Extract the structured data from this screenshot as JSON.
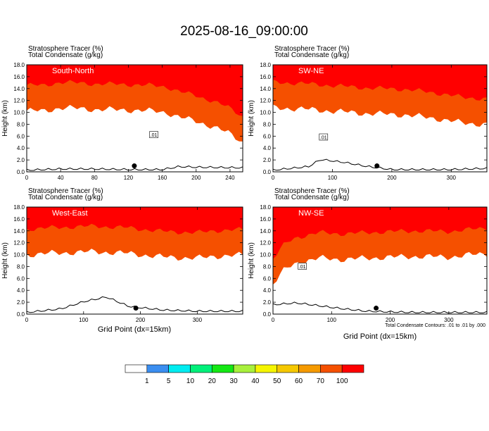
{
  "figure": {
    "title": "2025-08-16_09:00:00",
    "xlabel": "Grid Point (dx=15km)",
    "contour_note": "Total Condensate Contours: .01 to .01 by .000"
  },
  "colors": {
    "fill_0_1": "#ffffff",
    "fill_1_5": "#3b8ef0",
    "fill_5_10": "#00ecf0",
    "fill_10_20": "#00f07a",
    "fill_20_30": "#14e814",
    "fill_30_40": "#a8f03c",
    "fill_40_50": "#f5f500",
    "fill_50_60": "#f5c800",
    "fill_60_70": "#f59a00",
    "fill_70_100": "#f55000",
    "fill_100": "#ff0000",
    "contour": "#000000"
  },
  "colorbar": {
    "labels": [
      "1",
      "5",
      "10",
      "20",
      "30",
      "40",
      "50",
      "60",
      "70",
      "100"
    ],
    "colors": [
      "#ffffff",
      "#3b8ef0",
      "#00ecf0",
      "#00f07a",
      "#14e814",
      "#a8f03c",
      "#f5f500",
      "#f5c800",
      "#f59a00",
      "#f55000",
      "#ff0000"
    ]
  },
  "chart_data": [
    {
      "type": "heatmap",
      "title": "South-North",
      "field_label": "Stratosphere Tracer",
      "field_units": "(%)",
      "contour_label": "Total Condensate",
      "contour_units": "(g/kg)",
      "ylabel": "Height (km)",
      "xlim": [
        0,
        255
      ],
      "ylim": [
        0,
        18
      ],
      "xticks": [
        0,
        40,
        80,
        120,
        160,
        200,
        240
      ],
      "yticks": [
        0.0,
        2.0,
        4.0,
        6.0,
        8.0,
        10.0,
        12.0,
        14.0,
        16.0,
        18.0
      ],
      "tropopause_km": [
        [
          0,
          14.3
        ],
        [
          20,
          14.2
        ],
        [
          40,
          14.8
        ],
        [
          80,
          14.5
        ],
        [
          120,
          14.4
        ],
        [
          150,
          14.2
        ],
        [
          165,
          14.0
        ],
        [
          180,
          13.2
        ],
        [
          200,
          12.5
        ],
        [
          220,
          11.6
        ],
        [
          240,
          10.4
        ],
        [
          255,
          9.0
        ]
      ],
      "terrain_km": [
        [
          0,
          0.2
        ],
        [
          40,
          0.4
        ],
        [
          80,
          0.4
        ],
        [
          120,
          0.3
        ],
        [
          160,
          0.3
        ],
        [
          180,
          0.8
        ],
        [
          200,
          0.7
        ],
        [
          255,
          0.6
        ]
      ],
      "marker": [
        127,
        1.0
      ],
      "contour_label_value": ".01",
      "contour_label_at": [
        150,
        6.2
      ]
    },
    {
      "type": "heatmap",
      "title": "SW-NE",
      "field_label": "Stratosphere Tracer",
      "field_units": "(%)",
      "contour_label": "Total Condensate",
      "contour_units": "(g/kg)",
      "ylabel": "Height (km)",
      "xlim": [
        0,
        360
      ],
      "ylim": [
        0,
        18
      ],
      "xticks": [
        0,
        100,
        200,
        300
      ],
      "yticks": [
        0.0,
        2.0,
        4.0,
        6.0,
        8.0,
        10.0,
        12.0,
        14.0,
        16.0,
        18.0
      ],
      "tropopause_km": [
        [
          0,
          14.8
        ],
        [
          60,
          14.5
        ],
        [
          100,
          14.2
        ],
        [
          160,
          13.8
        ],
        [
          220,
          13.6
        ],
        [
          280,
          12.9
        ],
        [
          320,
          12.2
        ],
        [
          360,
          12.0
        ]
      ],
      "terrain_km": [
        [
          0,
          0.2
        ],
        [
          60,
          0.8
        ],
        [
          80,
          2.0
        ],
        [
          120,
          1.5
        ],
        [
          160,
          0.8
        ],
        [
          200,
          0.3
        ],
        [
          300,
          0.3
        ],
        [
          360,
          0.5
        ]
      ],
      "marker": [
        175,
        1.0
      ],
      "contour_label_value": ".01",
      "contour_label_at": [
        85,
        5.8
      ]
    },
    {
      "type": "heatmap",
      "title": "West-East",
      "field_label": "Stratosphere Tracer",
      "field_units": "(%)",
      "contour_label": "Total Condensate",
      "contour_units": "(g/kg)",
      "ylabel": "Height (km)",
      "xlim": [
        0,
        380
      ],
      "ylim": [
        0,
        18
      ],
      "xticks": [
        0,
        100,
        200,
        300
      ],
      "yticks": [
        0.0,
        2.0,
        4.0,
        6.0,
        8.0,
        10.0,
        12.0,
        14.0,
        16.0,
        18.0
      ],
      "tropopause_km": [
        [
          0,
          14.0
        ],
        [
          60,
          14.3
        ],
        [
          120,
          14.5
        ],
        [
          180,
          14.2
        ],
        [
          240,
          13.6
        ],
        [
          300,
          13.4
        ],
        [
          340,
          13.8
        ],
        [
          380,
          13.9
        ]
      ],
      "terrain_km": [
        [
          0,
          0.2
        ],
        [
          60,
          0.8
        ],
        [
          100,
          2.0
        ],
        [
          140,
          2.8
        ],
        [
          180,
          1.2
        ],
        [
          240,
          0.6
        ],
        [
          300,
          0.4
        ],
        [
          380,
          0.4
        ]
      ],
      "marker": [
        192,
        1.0
      ]
    },
    {
      "type": "heatmap",
      "title": "NW-SE",
      "field_label": "Stratosphere Tracer",
      "field_units": "(%)",
      "contour_label": "Total Condensate",
      "contour_units": "(g/kg)",
      "ylabel": "Height (km)",
      "xlim": [
        0,
        365
      ],
      "ylim": [
        0,
        18
      ],
      "xticks": [
        0,
        100,
        200,
        300
      ],
      "yticks": [
        0.0,
        2.0,
        4.0,
        6.0,
        8.0,
        10.0,
        12.0,
        14.0,
        16.0,
        18.0
      ],
      "tropopause_km": [
        [
          0,
          9.0
        ],
        [
          20,
          11.5
        ],
        [
          40,
          12.6
        ],
        [
          80,
          13.4
        ],
        [
          120,
          13.2
        ],
        [
          180,
          13.5
        ],
        [
          240,
          13.7
        ],
        [
          300,
          13.6
        ],
        [
          365,
          14.2
        ]
      ],
      "terrain_km": [
        [
          0,
          1.5
        ],
        [
          40,
          1.8
        ],
        [
          80,
          1.3
        ],
        [
          120,
          0.8
        ],
        [
          160,
          0.4
        ],
        [
          240,
          0.2
        ],
        [
          365,
          0.2
        ]
      ],
      "marker": [
        176,
        1.0
      ],
      "contour_label_value": ".01",
      "contour_label_at": [
        50,
        8.0
      ]
    }
  ]
}
